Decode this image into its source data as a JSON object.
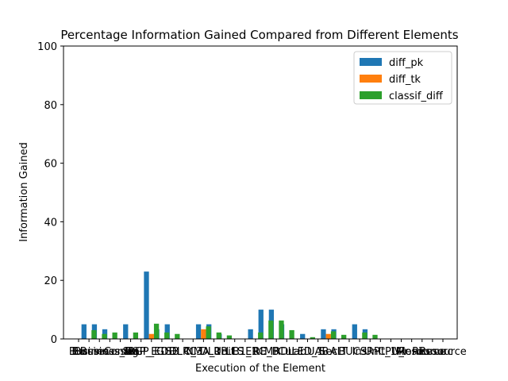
{
  "chart_data": {
    "type": "bar",
    "title": "Percentage Information Gained Compared from Different Elements",
    "xlabel": "Execution of the Element",
    "ylabel": "Information Gained",
    "ylim": [
      0,
      100
    ],
    "yticks": [
      0,
      20,
      40,
      60,
      80,
      100
    ],
    "legend_position": "top-right",
    "categories": [
      "Bu",
      "Busines",
      "Business_",
      "BusinessUn",
      "Conne",
      "Sig",
      "BGP_E",
      "BGP_EDE",
      "Gl",
      "SB",
      "DLRC",
      "C_3",
      "NMA_1",
      "DLRB",
      "Unit",
      "LLS",
      "B1_1",
      "ERC",
      "RE_B",
      "MRD",
      "Cur",
      "Lab",
      "LED_1",
      "UAB",
      "Sec",
      "ALT",
      "BUC",
      "Ins",
      "SRP",
      "Unit_1",
      "CPU_",
      "Vir",
      "Monic",
      "Resource",
      "Resourc",
      "Resource"
    ],
    "series": [
      {
        "name": "diff_pk",
        "color": "#1f77b4",
        "values": [
          0,
          5,
          5,
          3.3,
          0,
          5,
          0,
          23,
          3.3,
          5,
          0,
          0,
          5,
          5,
          1.7,
          0,
          0,
          3.3,
          10,
          10,
          5,
          0,
          1.7,
          0,
          3.3,
          3.3,
          0,
          5,
          3.3,
          0,
          0,
          0,
          0,
          0,
          0,
          0
        ]
      },
      {
        "name": "diff_tk",
        "color": "#ff7f0e",
        "values": [
          0,
          0,
          0,
          0,
          0,
          0,
          0,
          1.7,
          0,
          0,
          0,
          0,
          3.3,
          0,
          0,
          0,
          0,
          0,
          0,
          0,
          0,
          0,
          0,
          0,
          1.7,
          0,
          0,
          0,
          0,
          0,
          0,
          0,
          0,
          0,
          0,
          0
        ]
      },
      {
        "name": "classif_diff",
        "color": "#2ca02c",
        "values": [
          0,
          3,
          1.7,
          2.2,
          0,
          2.2,
          0,
          5.2,
          2.2,
          1.7,
          0,
          0,
          4.3,
          2.2,
          1.2,
          0,
          0,
          2.2,
          6.3,
          6.3,
          3,
          0,
          0.6,
          0,
          2.6,
          1.4,
          0,
          2.2,
          1.4,
          0,
          0,
          0,
          0,
          0,
          0,
          0
        ]
      }
    ]
  }
}
